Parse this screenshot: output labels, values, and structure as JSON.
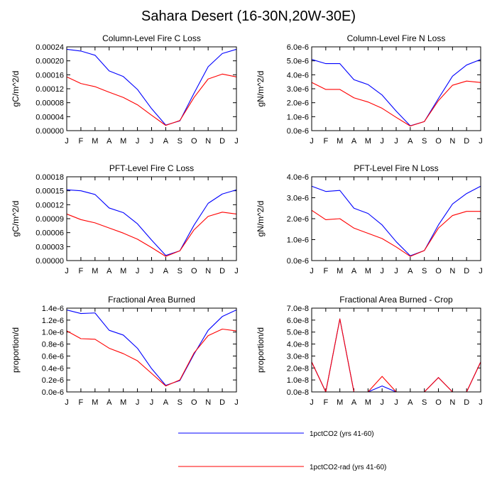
{
  "figure": {
    "title": "Sahara Desert (16-30N,20W-30E)"
  },
  "legend": [
    {
      "name": "1pctCO2 (yrs 41-60)",
      "color": "#0000ff"
    },
    {
      "name": "1pctCO2-rad (yrs 41-60)",
      "color": "#ff0000"
    }
  ],
  "chart_data": [
    {
      "type": "line",
      "title": "Column-Level Fire C Loss",
      "ylabel": "gC/m^2/d",
      "categories": [
        "J",
        "F",
        "M",
        "A",
        "M",
        "J",
        "J",
        "A",
        "S",
        "O",
        "N",
        "D",
        "J"
      ],
      "ylim": [
        0,
        0.00024
      ],
      "yticks": [
        "0.00000",
        "0.00004",
        "0.00008",
        "0.00012",
        "0.00016",
        "0.00020",
        "0.00024"
      ],
      "series": [
        {
          "name": "1pctCO2 (yrs 41-60)",
          "color": "#0000ff",
          "values": [
            0.000233,
            0.000228,
            0.000216,
            0.000171,
            0.000155,
            0.000118,
            6.3e-05,
            1.6e-05,
            2.8e-05,
            0.000107,
            0.000183,
            0.000221,
            0.000233
          ]
        },
        {
          "name": "1pctCO2-rad (yrs 41-60)",
          "color": "#ff0000",
          "values": [
            0.000154,
            0.000135,
            0.000126,
            0.00011,
            9.5e-05,
            7.4e-05,
            4.4e-05,
            1.5e-05,
            2.9e-05,
            9.5e-05,
            0.000148,
            0.000162,
            0.000154
          ]
        }
      ]
    },
    {
      "type": "line",
      "title": "Column-Level Fire N Loss",
      "ylabel": "gN/m^2/d",
      "categories": [
        "J",
        "F",
        "M",
        "A",
        "M",
        "J",
        "J",
        "A",
        "S",
        "O",
        "N",
        "D",
        "J"
      ],
      "ylim": [
        0,
        6e-06
      ],
      "yticks": [
        "0.0e-6",
        "1.0e-6",
        "2.0e-6",
        "3.0e-6",
        "4.0e-6",
        "5.0e-6",
        "6.0e-6"
      ],
      "series": [
        {
          "name": "1pctCO2 (yrs 41-60)",
          "color": "#0000ff",
          "values": [
            5.1e-06,
            4.8e-06,
            4.8e-06,
            3.65e-06,
            3.3e-06,
            2.55e-06,
            1.4e-06,
            3.5e-07,
            6.5e-07,
            2.3e-06,
            3.9e-06,
            4.7e-06,
            5.1e-06
          ]
        },
        {
          "name": "1pctCO2-rad (yrs 41-60)",
          "color": "#ff0000",
          "values": [
            3.45e-06,
            2.95e-06,
            2.95e-06,
            2.35e-06,
            2.05e-06,
            1.6e-06,
            9.5e-07,
            3.3e-07,
            6.5e-07,
            2.15e-06,
            3.25e-06,
            3.55e-06,
            3.45e-06
          ]
        }
      ]
    },
    {
      "type": "line",
      "title": "PFT-Level Fire C Loss",
      "ylabel": "gC/m^2/d",
      "categories": [
        "J",
        "F",
        "M",
        "A",
        "M",
        "J",
        "J",
        "A",
        "S",
        "O",
        "N",
        "D",
        "J"
      ],
      "ylim": [
        0,
        0.00018
      ],
      "yticks": [
        "0.00000",
        "0.00003",
        "0.00006",
        "0.00009",
        "0.00012",
        "0.00015",
        "0.00018"
      ],
      "series": [
        {
          "name": "1pctCO2 (yrs 41-60)",
          "color": "#0000ff",
          "values": [
            0.000152,
            0.00015,
            0.000142,
            0.000113,
            0.000103,
            7.9e-05,
            4.4e-05,
            1.1e-05,
            2.1e-05,
            7.6e-05,
            0.000123,
            0.000143,
            0.000152
          ]
        },
        {
          "name": "1pctCO2-rad (yrs 41-60)",
          "color": "#ff0000",
          "values": [
            0.0001,
            8.8e-05,
            8.1e-05,
            7e-05,
            5.9e-05,
            4.6e-05,
            2.8e-05,
            9e-06,
            2.1e-05,
            6.6e-05,
            9.5e-05,
            0.000104,
            0.0001
          ]
        }
      ]
    },
    {
      "type": "line",
      "title": "PFT-Level Fire N Loss",
      "ylabel": "gN/m^2/d",
      "categories": [
        "J",
        "F",
        "M",
        "A",
        "M",
        "J",
        "J",
        "A",
        "S",
        "O",
        "N",
        "D",
        "J"
      ],
      "ylim": [
        0,
        4e-06
      ],
      "yticks": [
        "0.0e-6",
        "1.0e-6",
        "2.0e-6",
        "3.0e-6",
        "4.0e-6"
      ],
      "series": [
        {
          "name": "1pctCO2 (yrs 41-60)",
          "color": "#0000ff",
          "values": [
            3.55e-06,
            3.3e-06,
            3.35e-06,
            2.5e-06,
            2.25e-06,
            1.7e-06,
            9e-07,
            2.3e-07,
            4.8e-07,
            1.7e-06,
            2.7e-06,
            3.2e-06,
            3.55e-06
          ]
        },
        {
          "name": "1pctCO2-rad (yrs 41-60)",
          "color": "#ff0000",
          "values": [
            2.4e-06,
            1.95e-06,
            2e-06,
            1.55e-06,
            1.3e-06,
            1.05e-06,
            6.5e-07,
            2e-07,
            4.8e-07,
            1.55e-06,
            2.15e-06,
            2.35e-06,
            2.35e-06
          ]
        }
      ]
    },
    {
      "type": "line",
      "title": "Fractional Area Burned",
      "ylabel": "proportion/d",
      "categories": [
        "J",
        "F",
        "M",
        "A",
        "M",
        "J",
        "J",
        "A",
        "S",
        "O",
        "N",
        "D",
        "J"
      ],
      "ylim": [
        0,
        1.4e-06
      ],
      "yticks": [
        "0.0e-6",
        "0.2e-6",
        "0.4e-6",
        "0.6e-6",
        "0.8e-6",
        "1.0e-6",
        "1.2e-6",
        "1.4e-6"
      ],
      "series": [
        {
          "name": "1pctCO2 (yrs 41-60)",
          "color": "#0000ff",
          "values": [
            1.37e-06,
            1.31e-06,
            1.32e-06,
            1.03e-06,
            9.5e-07,
            7.3e-07,
            3.9e-07,
            1.1e-07,
            1.9e-07,
            6.3e-07,
            1.03e-06,
            1.26e-06,
            1.37e-06
          ]
        },
        {
          "name": "1pctCO2-rad (yrs 41-60)",
          "color": "#ff0000",
          "values": [
            1.02e-06,
            8.9e-07,
            8.8e-07,
            7.3e-07,
            6.4e-07,
            5.2e-07,
            3.1e-07,
            1e-07,
            2e-07,
            6.5e-07,
            9.4e-07,
            1.05e-06,
            1.02e-06
          ]
        }
      ]
    },
    {
      "type": "line",
      "title": "Fractional Area Burned - Crop",
      "ylabel": "proportion/d",
      "categories": [
        "J",
        "F",
        "M",
        "A",
        "M",
        "J",
        "J",
        "A",
        "S",
        "O",
        "N",
        "D",
        "J"
      ],
      "ylim": [
        0,
        7e-08
      ],
      "yticks": [
        "0.0e-8",
        "1.0e-8",
        "2.0e-8",
        "3.0e-8",
        "4.0e-8",
        "5.0e-8",
        "6.0e-8",
        "7.0e-8"
      ],
      "series": [
        {
          "name": "1pctCO2 (yrs 41-60)",
          "color": "#0000ff",
          "values": [
            2.5e-08,
            0,
            6.1e-08,
            0,
            0,
            5e-09,
            0,
            0,
            0,
            1.2e-08,
            0,
            0,
            2.5e-08
          ]
        },
        {
          "name": "1pctCO2-rad (yrs 41-60)",
          "color": "#ff0000",
          "values": [
            2.5e-08,
            0,
            6.1e-08,
            0,
            0,
            1.3e-08,
            0,
            0,
            0,
            1.2e-08,
            0,
            0,
            2.5e-08
          ]
        }
      ]
    }
  ]
}
